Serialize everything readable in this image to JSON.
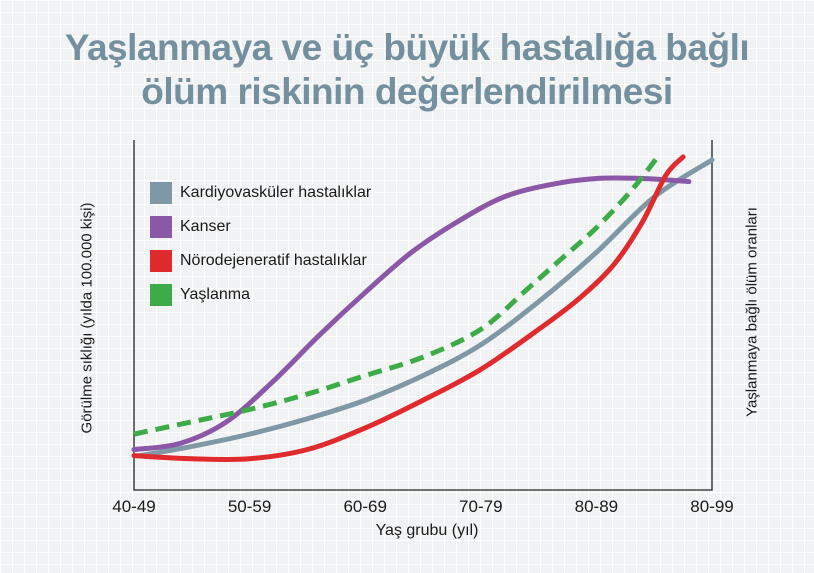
{
  "title": {
    "line1": "Yaşlanmaya ve üç büyük hastalığa bağlı",
    "line2": "ölüm riskinin değerlendirilmesi"
  },
  "chart_data": {
    "type": "line",
    "title": "Yaşlanmaya ve üç büyük hastalığa bağlı ölüm riskinin değerlendirilmesi",
    "xlabel": "Yaş grubu (yıl)",
    "ylabel": "Görülme sıklığı (yılda 100.000 kişi)",
    "ylabel_right": "Yaşlanmaya bağlı ölüm oranları",
    "categories": [
      "40-49",
      "50-59",
      "60-69",
      "70-79",
      "80-89",
      "80-99"
    ],
    "xlim": [
      0,
      5
    ],
    "ylim": [
      0,
      100
    ],
    "grid": true,
    "legend_position": "top-left",
    "series": [
      {
        "name": "Kardiyovasküler hastalıklar",
        "color": "#7e98a6",
        "style": "solid",
        "x": [
          0.05,
          0.5,
          1,
          1.5,
          2,
          2.5,
          3,
          3.5,
          4,
          4.5,
          5
        ],
        "y": [
          4,
          7,
          11,
          16,
          22,
          30,
          40,
          54,
          70,
          88,
          100
        ]
      },
      {
        "name": "Kanser",
        "color": "#8b58a8",
        "style": "solid",
        "x": [
          0,
          0.4,
          0.8,
          1.2,
          1.6,
          2.0,
          2.4,
          2.8,
          3.2,
          3.6,
          4.0,
          4.4,
          4.8
        ],
        "y": [
          6,
          8,
          15,
          28,
          43,
          57,
          70,
          80,
          88,
          92,
          94,
          94,
          93
        ]
      },
      {
        "name": "Nörodejeneratif hastalıklar",
        "color": "#e02b2e",
        "style": "solid",
        "x": [
          0,
          0.5,
          1,
          1.5,
          2,
          2.5,
          3,
          3.5,
          3.85,
          4.15,
          4.4,
          4.6,
          4.75
        ],
        "y": [
          4,
          3,
          3,
          6,
          13,
          22,
          32,
          45,
          55,
          66,
          80,
          95,
          101
        ]
      },
      {
        "name": "Yaşlanma",
        "color": "#3dab48",
        "style": "dashed",
        "x": [
          0,
          0.5,
          1,
          1.5,
          2,
          2.5,
          3,
          3.4,
          3.7,
          4.0,
          4.3,
          4.55
        ],
        "y": [
          11,
          15,
          19,
          24,
          30,
          36,
          45,
          58,
          68,
          78,
          90,
          102
        ]
      }
    ]
  }
}
